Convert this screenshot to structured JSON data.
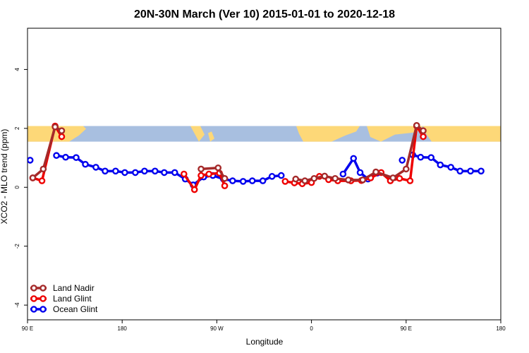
{
  "chart_data": {
    "type": "line",
    "title": "20N-30N March (Ver 10)   2015-01-01 to 2020-12-18",
    "xlabel": "Longitude",
    "ylabel": "XCO2 - MLO trend (ppm)",
    "xlim": [
      90,
      450
    ],
    "ylim": [
      -4.5,
      5.4
    ],
    "x_ticks": [
      {
        "value": 90,
        "label": "90 E"
      },
      {
        "value": 162,
        "label": "180"
      },
      {
        "value": 234,
        "label": "90 W"
      },
      {
        "value": 306,
        "label": "0"
      },
      {
        "value": 378,
        "label": "90 E"
      },
      {
        "value": 450,
        "label": "180"
      }
    ],
    "y_ticks": [
      {
        "value": -4,
        "label": "-4"
      },
      {
        "value": -2,
        "label": "-2"
      },
      {
        "value": 0,
        "label": "0"
      },
      {
        "value": 2,
        "label": "2"
      },
      {
        "value": 4,
        "label": "4"
      }
    ],
    "map_band": {
      "ymin": 1.55,
      "ymax": 2.08,
      "ocean_color": "#a8bfe0",
      "land_color": "#fdd878"
    },
    "legend": {
      "position": "bottom-left"
    },
    "series": [
      {
        "name": "Ocean Glint",
        "color": "#0000ee",
        "segments": [
          [
            [
              92,
              0.92
            ]
          ],
          [
            [
              112,
              1.08
            ],
            [
              119,
              1.02
            ],
            [
              127,
              1.01
            ],
            [
              134,
              0.78
            ],
            [
              142,
              0.68
            ],
            [
              149,
              0.55
            ],
            [
              157,
              0.55
            ],
            [
              164,
              0.5
            ],
            [
              172,
              0.5
            ],
            [
              179,
              0.55
            ],
            [
              187,
              0.55
            ],
            [
              194,
              0.5
            ],
            [
              202,
              0.5
            ],
            [
              210,
              0.28
            ],
            [
              216,
              0.08
            ],
            [
              224,
              0.35
            ],
            [
              231,
              0.4
            ],
            [
              239,
              0.28
            ],
            [
              246,
              0.22
            ],
            [
              254,
              0.2
            ],
            [
              261,
              0.22
            ],
            [
              269,
              0.22
            ],
            [
              276,
              0.37
            ],
            [
              283,
              0.4
            ]
          ],
          [
            [
              330,
              0.45
            ],
            [
              338,
              0.98
            ],
            [
              343,
              0.5
            ],
            [
              349,
              0.28
            ],
            [
              356,
              0.48
            ]
          ],
          [
            [
              375,
              0.92
            ]
          ],
          [
            [
              383,
              1.1
            ],
            [
              389,
              1.02
            ],
            [
              397,
              1.01
            ],
            [
              404,
              0.76
            ],
            [
              412,
              0.68
            ],
            [
              419,
              0.55
            ],
            [
              427,
              0.55
            ],
            [
              435,
              0.55
            ]
          ]
        ]
      },
      {
        "name": "Land Glint",
        "color": "#ee0000",
        "segments": [
          [
            [
              94,
              0.32
            ],
            [
              101,
              0.22
            ],
            [
              111,
              2.08
            ],
            [
              116,
              1.72
            ]
          ],
          [
            [
              209,
              0.45
            ],
            [
              217,
              -0.08
            ],
            [
              222,
              0.4
            ],
            [
              228,
              0.45
            ],
            [
              236,
              0.48
            ],
            [
              240,
              0.05
            ]
          ],
          [
            [
              286,
              0.2
            ],
            [
              293,
              0.15
            ],
            [
              299,
              0.12
            ],
            [
              306,
              0.16
            ],
            [
              312,
              0.37
            ],
            [
              319,
              0.26
            ],
            [
              326,
              0.22
            ],
            [
              336,
              0.22
            ],
            [
              344,
              0.23
            ],
            [
              351,
              0.32
            ],
            [
              359,
              0.5
            ],
            [
              366,
              0.22
            ],
            [
              373,
              0.3
            ],
            [
              381,
              0.22
            ],
            [
              386,
              2.08
            ],
            [
              391,
              1.72
            ]
          ]
        ]
      },
      {
        "name": "Land Nadir",
        "color": "#a52a2a",
        "segments": [
          [
            [
              94,
              0.32
            ],
            [
              102,
              0.62
            ],
            [
              111,
              2.05
            ],
            [
              116,
              1.92
            ]
          ],
          [
            [
              222,
              0.62
            ],
            [
              235,
              0.66
            ],
            [
              240,
              0.3
            ]
          ],
          [
            [
              294,
              0.28
            ],
            [
              301,
              0.22
            ],
            [
              308,
              0.3
            ],
            [
              316,
              0.38
            ],
            [
              324,
              0.3
            ],
            [
              334,
              0.25
            ],
            [
              345,
              0.25
            ],
            [
              355,
              0.52
            ],
            [
              368,
              0.32
            ],
            [
              378,
              0.62
            ],
            [
              386,
              2.1
            ],
            [
              391,
              1.92
            ]
          ]
        ]
      }
    ]
  }
}
